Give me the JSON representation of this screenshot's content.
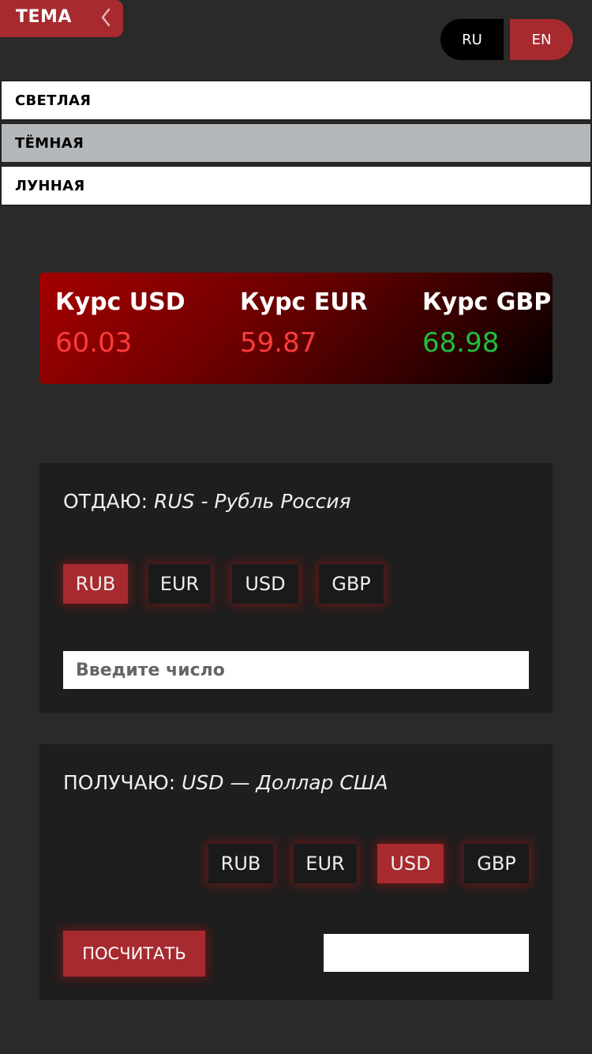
{
  "theme": {
    "label": "ТЕМА",
    "options": [
      "СВЕТЛАЯ",
      "ТЁМНАЯ",
      "ЛУННАЯ"
    ],
    "selected": "ТЁМНАЯ"
  },
  "language": {
    "ru": "RU",
    "en": "EN",
    "selected": "EN"
  },
  "rates": [
    {
      "title": "Курс USD",
      "value": "60.03",
      "trend": "down"
    },
    {
      "title": "Курс EUR",
      "value": "59.87",
      "trend": "down"
    },
    {
      "title": "Курс GBP",
      "value": "68.98",
      "trend": "up"
    }
  ],
  "give": {
    "title_prefix": "ОТДАЮ: ",
    "title_currency": "RUS - Рубль Россия",
    "currencies": [
      "RUB",
      "EUR",
      "USD",
      "GBP"
    ],
    "selected": "RUB",
    "input_placeholder": "Введите число"
  },
  "get": {
    "title_prefix": "ПОЛУЧАЮ: ",
    "title_currency": "USD — Доллар США",
    "currencies": [
      "RUB",
      "EUR",
      "USD",
      "GBP"
    ],
    "selected": "USD",
    "calculate_label": "ПОСЧИТАТЬ",
    "result": ""
  },
  "colors": {
    "accent": "#a72a2f",
    "background": "#2a2a2a",
    "card": "#1e1e1e",
    "rate_down": "#ff3b3b",
    "rate_up": "#1fbf3f"
  }
}
